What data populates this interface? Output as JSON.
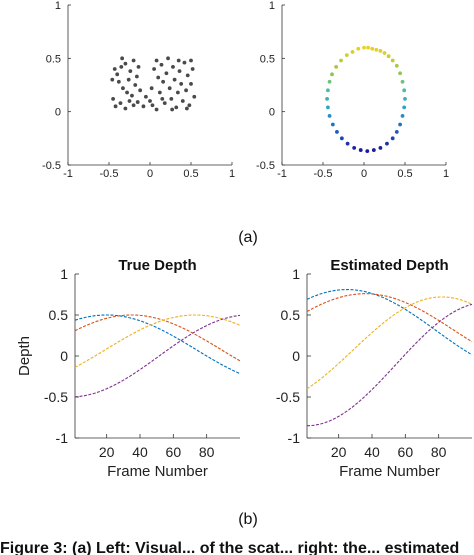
{
  "panel_labels": {
    "a": "(a)",
    "b": "(b)"
  },
  "caption_fragment": "Figure 3: (a) Left: Visual... of the scat... right: the... estimated",
  "colors": {
    "dot_gray": "#4a4a4a",
    "blue": "#0072bd",
    "orange": "#d95319",
    "yellow": "#edb120",
    "purple": "#7e2f8e"
  },
  "chart_data": [
    {
      "type": "scatter",
      "id": "scatter-left",
      "xlim": [
        -1,
        1
      ],
      "ylim": [
        -0.5,
        1
      ],
      "xticks": [
        "-1",
        "-0.5",
        "0",
        "0.5",
        "1"
      ],
      "yticks": [
        "-0.5",
        "0",
        "0.5",
        "1"
      ],
      "color": "#4a4a4a",
      "points": [
        [
          -0.43,
          0.4
        ],
        [
          -0.4,
          0.35
        ],
        [
          -0.38,
          0.28
        ],
        [
          -0.35,
          0.42
        ],
        [
          -0.33,
          0.22
        ],
        [
          -0.3,
          0.45
        ],
        [
          -0.28,
          0.18
        ],
        [
          -0.26,
          0.3
        ],
        [
          -0.24,
          0.38
        ],
        [
          -0.22,
          0.15
        ],
        [
          -0.2,
          0.48
        ],
        [
          -0.18,
          0.25
        ],
        [
          -0.16,
          0.33
        ],
        [
          -0.14,
          0.42
        ],
        [
          -0.45,
          0.12
        ],
        [
          -0.42,
          0.05
        ],
        [
          -0.36,
          0.08
        ],
        [
          -0.3,
          0.03
        ],
        [
          -0.25,
          0.1
        ],
        [
          -0.2,
          0.06
        ],
        [
          -0.15,
          0.09
        ],
        [
          -0.12,
          0.2
        ],
        [
          -0.46,
          0.3
        ],
        [
          -0.34,
          0.5
        ],
        [
          -0.05,
          0.14
        ],
        [
          0.0,
          0.1
        ],
        [
          0.02,
          0.22
        ],
        [
          0.05,
          0.4
        ],
        [
          0.08,
          0.48
        ],
        [
          0.1,
          0.32
        ],
        [
          0.12,
          0.18
        ],
        [
          0.14,
          0.44
        ],
        [
          0.16,
          0.28
        ],
        [
          0.18,
          0.08
        ],
        [
          0.2,
          0.36
        ],
        [
          0.22,
          0.5
        ],
        [
          0.24,
          0.22
        ],
        [
          0.26,
          0.12
        ],
        [
          0.28,
          0.42
        ],
        [
          0.3,
          0.3
        ],
        [
          0.32,
          0.04
        ],
        [
          0.34,
          0.18
        ],
        [
          0.36,
          0.38
        ],
        [
          0.38,
          0.26
        ],
        [
          0.4,
          0.1
        ],
        [
          0.42,
          0.46
        ],
        [
          0.44,
          0.2
        ],
        [
          0.46,
          0.34
        ],
        [
          0.48,
          0.06
        ],
        [
          0.5,
          0.26
        ],
        [
          0.52,
          0.4
        ],
        [
          0.54,
          0.14
        ],
        [
          0.08,
          0.02
        ],
        [
          0.15,
          0.12
        ],
        [
          0.35,
          0.48
        ],
        [
          0.45,
          0.03
        ],
        [
          -0.08,
          0.05
        ],
        [
          0.03,
          0.06
        ],
        [
          0.27,
          0.02
        ],
        [
          0.5,
          0.48
        ]
      ]
    },
    {
      "type": "scatter",
      "id": "scatter-right",
      "xlim": [
        -1,
        1
      ],
      "ylim": [
        -0.5,
        1
      ],
      "xticks": [
        "-1",
        "-0.5",
        "0",
        "0.5",
        "1"
      ],
      "yticks": [
        "-0.5",
        "0",
        "0.5",
        "1"
      ],
      "colormap": [
        "#1a1a9a",
        "#1f5fbf",
        "#2aa0c8",
        "#4cc19a",
        "#a6c640",
        "#e6d325"
      ],
      "points": [
        [
          0.0,
          0.6
        ],
        [
          0.05,
          0.6
        ],
        [
          0.1,
          0.59
        ],
        [
          0.15,
          0.58
        ],
        [
          0.2,
          0.57
        ],
        [
          0.25,
          0.55
        ],
        [
          0.3,
          0.52
        ],
        [
          0.35,
          0.48
        ],
        [
          0.4,
          0.43
        ],
        [
          0.44,
          0.36
        ],
        [
          0.47,
          0.28
        ],
        [
          0.49,
          0.2
        ],
        [
          0.5,
          0.12
        ],
        [
          0.49,
          0.04
        ],
        [
          0.47,
          -0.04
        ],
        [
          0.44,
          -0.12
        ],
        [
          0.4,
          -0.19
        ],
        [
          0.35,
          -0.25
        ],
        [
          0.28,
          -0.3
        ],
        [
          0.2,
          -0.34
        ],
        [
          0.12,
          -0.36
        ],
        [
          0.04,
          -0.37
        ],
        [
          -0.04,
          -0.36
        ],
        [
          -0.12,
          -0.34
        ],
        [
          -0.2,
          -0.3
        ],
        [
          -0.27,
          -0.25
        ],
        [
          -0.33,
          -0.19
        ],
        [
          -0.38,
          -0.12
        ],
        [
          -0.42,
          -0.04
        ],
        [
          -0.44,
          0.04
        ],
        [
          -0.45,
          0.12
        ],
        [
          -0.44,
          0.2
        ],
        [
          -0.42,
          0.28
        ],
        [
          -0.39,
          0.35
        ],
        [
          -0.34,
          0.42
        ],
        [
          -0.28,
          0.48
        ],
        [
          -0.21,
          0.53
        ],
        [
          -0.14,
          0.56
        ],
        [
          -0.07,
          0.59
        ]
      ]
    },
    {
      "type": "line",
      "id": "true-depth",
      "title": "True Depth",
      "xlabel": "Frame Number",
      "ylabel": "Depth",
      "xlim": [
        1,
        100
      ],
      "ylim": [
        -1,
        1
      ],
      "xticks": [
        20,
        40,
        60,
        80
      ],
      "yticks": [
        "-1",
        "-0.5",
        "0",
        "0.5",
        "1"
      ],
      "series": [
        {
          "color": "#0072bd",
          "amp": 0.42,
          "center": 0.08,
          "peak_x": 20
        },
        {
          "color": "#d95319",
          "amp": 0.42,
          "center": 0.08,
          "peak_x": 35
        },
        {
          "color": "#edb120",
          "amp": 0.42,
          "center": 0.08,
          "peak_x": 73
        },
        {
          "color": "#7e2f8e",
          "amp": 0.5,
          "center": 0.0,
          "peak_x": 105
        }
      ]
    },
    {
      "type": "line",
      "id": "estimated-depth",
      "title": "Estimated Depth",
      "xlabel": "Frame Number",
      "ylabel": "",
      "xlim": [
        1,
        100
      ],
      "ylim": [
        -1,
        1
      ],
      "xticks": [
        20,
        40,
        60,
        80
      ],
      "yticks": [
        "-1",
        "-0.5",
        "0",
        "0.5",
        "1"
      ],
      "series": [
        {
          "color": "#0072bd",
          "amp": 0.5,
          "center": 0.31,
          "peak_x": 25
        },
        {
          "color": "#d95319",
          "amp": 0.45,
          "center": 0.31,
          "peak_x": 36
        },
        {
          "color": "#edb120",
          "amp": 0.65,
          "center": 0.07,
          "peak_x": 82
        },
        {
          "color": "#7e2f8e",
          "amp": 0.75,
          "center": -0.1,
          "peak_x": 108
        }
      ]
    }
  ]
}
